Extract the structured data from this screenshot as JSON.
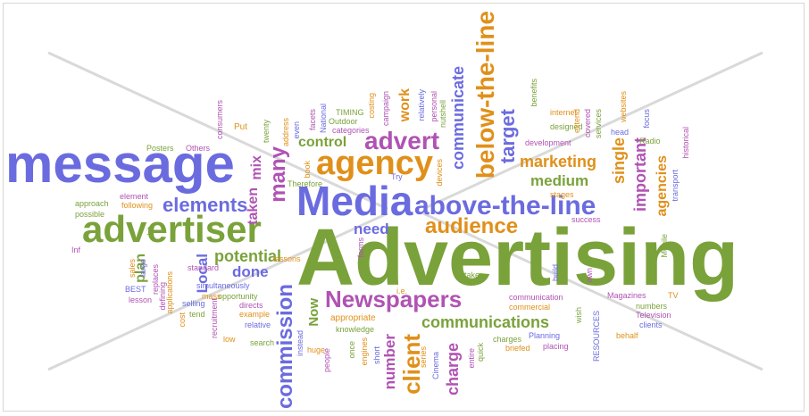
{
  "colors": {
    "blue": "#6b6be0",
    "green": "#7aa23a",
    "orange": "#e0901a",
    "purple": "#b053b3",
    "watermark": "#c8c8c8"
  },
  "words": {
    "advertising": "Advertising",
    "message": "message",
    "media": "Media",
    "advertiser": "advertiser",
    "agency": "agency",
    "advert": "advert",
    "above_the_line": "above-the-line",
    "below_the_line": "below-the-line",
    "newspapers": "Newspapers",
    "audience": "audience",
    "client": "client",
    "commission": "commission",
    "communications": "communications",
    "communicate": "communicate",
    "target": "target",
    "marketing": "marketing",
    "medium": "medium",
    "important": "important",
    "agencies": "agencies",
    "single": "single",
    "elements": "elements",
    "potential": "potential",
    "many": "many",
    "control": "control",
    "need": "need",
    "done": "done",
    "plan": "plan",
    "local": "Local",
    "taken": "taken",
    "mix": "mix",
    "now": "Now",
    "charge": "charge",
    "number": "number",
    "work": "work",
    "posters": "Posters",
    "others": "Others",
    "consumers": "consumers",
    "put": "Put",
    "timing": "TIMING",
    "outdoor": "Outdoor",
    "categories": "categories",
    "internet": "internet",
    "designed": "designed",
    "development": "development",
    "radio": "Radio",
    "magazines": "Magazines",
    "television": "Television",
    "numbers": "numbers",
    "planning": "Planning",
    "placing": "placing",
    "briefed": "briefed",
    "charges": "charges",
    "appropriate": "appropriate",
    "knowledge": "knowledge",
    "commercial": "commercial",
    "communication": "communication",
    "simultaneously": "simultaneously",
    "opportunity": "opportunity",
    "example": "example",
    "standard": "standard",
    "lessons": "lessons",
    "best": "BEST",
    "lesson": "lesson",
    "approach": "approach",
    "possible": "possible",
    "element": "element",
    "following": "following",
    "stages": "stages",
    "success": "success",
    "search": "search",
    "low": "low",
    "huge": "huge",
    "relative": "relative",
    "directs": "directs",
    "mass": "mass",
    "selling": "selling",
    "tend": "tend",
    "try": "Try",
    "therefore": "Therefore",
    "book": "book",
    "ie": "i.e.",
    "take": "take",
    "mobile": "Mobile",
    "transport": "transport",
    "historical": "historical",
    "websites": "websites",
    "head": "head",
    "focus": "focus",
    "tv": "TV",
    "clients": "clients",
    "behalf": "behalf",
    "resources": "RESOURCES",
    "wish": "wish",
    "covered": "covered",
    "services": "services",
    "extend": "extend",
    "cinema": "Cinema",
    "series": "series",
    "quick": "quick",
    "short": "short",
    "people": "people",
    "engines": "engines",
    "once": "once",
    "entire": "entire",
    "personal": "personal",
    "nutshell": "nutshell",
    "relatively": "relatively",
    "costing": "costing",
    "campaign": "campaign",
    "benefits": "benefits",
    "own": "own",
    "build": "build",
    "facets": "facets",
    "national": "National",
    "address": "address",
    "even": "even",
    "twenty": "twenty",
    "cost": "cost",
    "recruitment": "recruitment",
    "instead": "instead",
    "forms": "forms",
    "devices": "devices",
    "defining": "defining",
    "hit": "hit",
    "large": "large",
    "sales": "sales",
    "replaces": "replaces",
    "applications": "applications",
    "info": "Inf"
  }
}
